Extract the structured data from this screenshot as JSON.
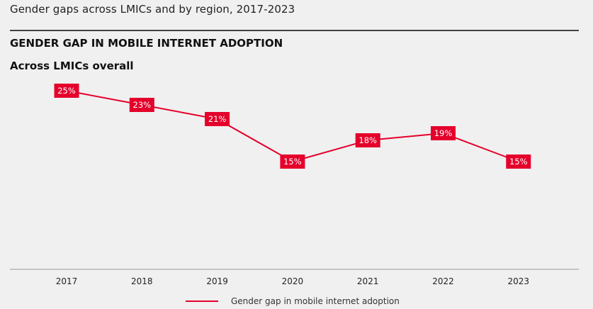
{
  "header": {
    "subtitle": "Gender gaps across LMICs and by region, 2017-2023"
  },
  "chart_data": {
    "type": "line",
    "title": "GENDER GAP IN MOBILE INTERNET ADOPTION",
    "subtitle": "Across LMICs overall",
    "xlabel": "",
    "ylabel": "",
    "categories": [
      "2017",
      "2018",
      "2019",
      "2020",
      "2021",
      "2022",
      "2023"
    ],
    "series": [
      {
        "name": "Gender gap in mobile internet adoption",
        "values": [
          25,
          23,
          21,
          15,
          18,
          19,
          15
        ],
        "labels": [
          "25%",
          "23%",
          "21%",
          "15%",
          "18%",
          "19%",
          "15%"
        ],
        "color": "#e4002b"
      }
    ],
    "ylim": [
      0,
      25
    ],
    "grid": false,
    "legend": "bottom-center"
  },
  "colors": {
    "accent": "#e4002b",
    "background": "#f0f0f0",
    "axis": "#999999",
    "label_text": "#ffffff"
  }
}
